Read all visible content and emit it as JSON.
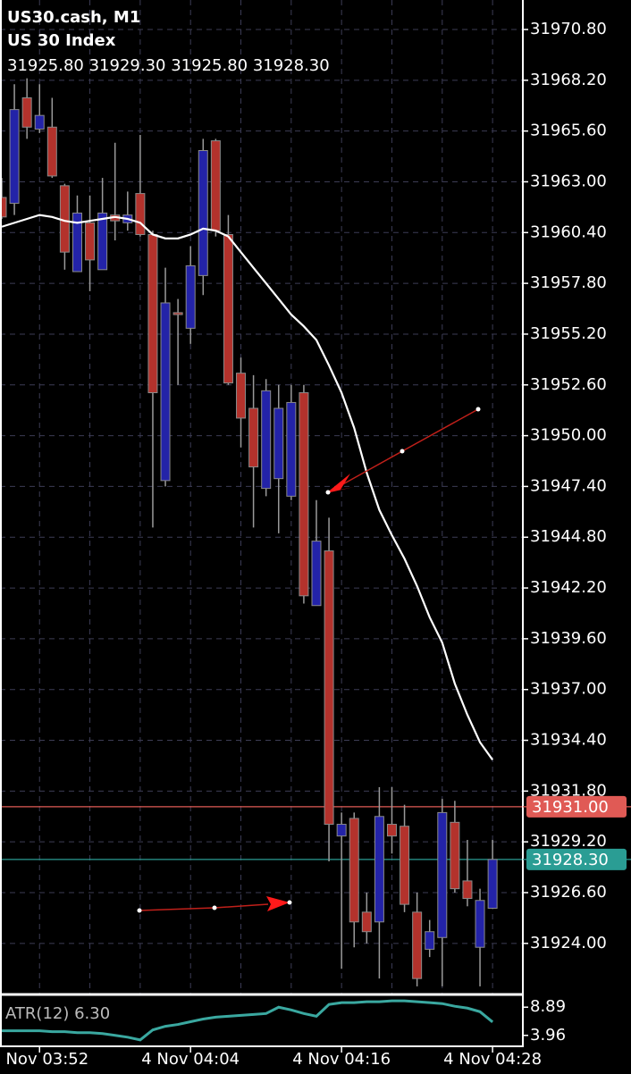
{
  "chart_data": [
    {
      "type": "candlestick",
      "title": "US30.cash, M1",
      "subtitle": "US 30 Index",
      "ohlc_text": "31925.80 31929.30 31925.80 31928.30",
      "categories": [
        null,
        null,
        null,
        "4 Nov 03:52",
        null,
        null,
        null,
        null,
        null,
        null,
        null,
        null,
        null,
        null,
        null,
        "4 Nov 04:04",
        null,
        null,
        null,
        null,
        null,
        null,
        null,
        null,
        null,
        null,
        null,
        "4 Nov 04:16",
        null,
        null,
        null,
        null,
        null,
        null,
        null,
        null,
        null,
        null,
        null,
        "4 Nov 04:28"
      ],
      "open": [
        31962.2,
        31961.9,
        31967.3,
        31965.7,
        31965.8,
        31962.8,
        31958.4,
        31960.9,
        31958.5,
        31961.3,
        31960.9,
        31962.4,
        31960.3,
        31947.7,
        31956.3,
        31955.5,
        31958.2,
        31965.1,
        31960.3,
        31953.2,
        31951.4,
        31947.3,
        31947.8,
        31946.9,
        31952.2,
        31941.3,
        31944.1,
        31929.5,
        31930.4,
        31925.6,
        31925.1,
        31930.1,
        31930.0,
        31925.6,
        31923.7,
        31924.3,
        31930.2,
        31927.2,
        31923.8,
        31925.8
      ],
      "high": [
        31963.2,
        31968.0,
        31968.3,
        31968.0,
        31967.3,
        31962.9,
        31962.3,
        31962.3,
        31963.2,
        31965.0,
        31962.5,
        31965.4,
        31960.5,
        31958.6,
        31957.0,
        31959.7,
        31965.2,
        31965.2,
        31961.3,
        31954.0,
        31953.1,
        31952.9,
        31952.6,
        31952.6,
        31952.6,
        31946.7,
        31945.8,
        31930.7,
        31930.7,
        31926.6,
        31932.0,
        31932.0,
        31931.1,
        31926.6,
        31925.2,
        31931.4,
        31931.3,
        31929.3,
        31926.8,
        31929.3
      ],
      "low": [
        31961.1,
        31961.3,
        31965.2,
        31965.5,
        31963.2,
        31958.5,
        31958.4,
        31957.4,
        31958.5,
        31960.0,
        31960.5,
        31960.2,
        31945.3,
        31947.4,
        31952.6,
        31954.7,
        31957.2,
        31960.2,
        31952.6,
        31949.4,
        31945.3,
        31946.9,
        31945.0,
        31946.7,
        31941.4,
        31941.3,
        31928.2,
        31922.7,
        31923.8,
        31924.0,
        31922.2,
        31928.6,
        31925.6,
        31921.8,
        31923.3,
        31921.8,
        31926.6,
        31925.9,
        31921.8,
        31925.8
      ],
      "close": [
        31961.2,
        31966.7,
        31965.8,
        31966.4,
        31963.3,
        31959.4,
        31961.4,
        31959.0,
        31961.4,
        31961.0,
        31961.3,
        31960.3,
        31952.2,
        31956.8,
        31956.2,
        31958.7,
        31964.6,
        31960.5,
        31952.7,
        31950.9,
        31948.4,
        31952.3,
        31951.4,
        31951.7,
        31941.8,
        31944.6,
        31930.1,
        31930.1,
        31925.1,
        31924.6,
        31930.5,
        31929.5,
        31926.0,
        31922.2,
        31924.6,
        31930.7,
        31926.8,
        31926.3,
        31926.2,
        31928.3
      ],
      "up_color": "#2323a8",
      "down_color": "#b3322c",
      "ma": {
        "color": "#ffffff",
        "values": [
          31960.7,
          31960.9,
          31961.1,
          31961.3,
          31961.2,
          31961.0,
          31960.9,
          31961.0,
          31961.1,
          31961.2,
          31961.1,
          31960.9,
          31960.3,
          31960.1,
          31960.1,
          31960.3,
          31960.6,
          31960.5,
          31960.2,
          31959.4,
          31958.6,
          31957.8,
          31957.0,
          31956.2,
          31955.6,
          31954.9,
          31953.6,
          31952.2,
          31950.4,
          31948.1,
          31946.2,
          31944.9,
          31943.7,
          31942.3,
          31940.7,
          31939.4,
          31937.3,
          31935.7,
          31934.3,
          31933.4
        ]
      },
      "ylim": [
        31921.43,
        31972.31
      ],
      "yticks": [
        {
          "value": 31970.8,
          "label": "31970.80"
        },
        {
          "value": 31968.2,
          "label": "31968.20"
        },
        {
          "value": 31965.6,
          "label": "31965.60"
        },
        {
          "value": 31963.0,
          "label": "31963.00"
        },
        {
          "value": 31960.4,
          "label": "31960.40"
        },
        {
          "value": 31957.8,
          "label": "31957.80"
        },
        {
          "value": 31955.2,
          "label": "31955.20"
        },
        {
          "value": 31952.6,
          "label": "31952.60"
        },
        {
          "value": 31950.0,
          "label": "31950.00"
        },
        {
          "value": 31947.4,
          "label": "31947.40"
        },
        {
          "value": 31944.8,
          "label": "31944.80"
        },
        {
          "value": 31942.2,
          "label": "31942.20"
        },
        {
          "value": 31939.6,
          "label": "31939.60"
        },
        {
          "value": 31937.0,
          "label": "31937.00"
        },
        {
          "value": 31934.4,
          "label": "31934.40"
        },
        {
          "value": 31931.8,
          "label": "31931.80"
        },
        {
          "value": 31929.2,
          "label": "31929.20"
        },
        {
          "value": 31926.6,
          "label": "31926.60"
        },
        {
          "value": 31924.0,
          "label": "31924.00"
        }
      ],
      "grid": true,
      "price_lines": [
        {
          "value": 31931.0,
          "label": "31931.00",
          "color": "#e05a55"
        },
        {
          "value": 31928.3,
          "label": "31928.30",
          "color": "#2a9d94"
        }
      ]
    },
    {
      "type": "line",
      "title": "ATR(12) 6.30",
      "color": "#3aa8a0",
      "values": [
        4.76,
        4.76,
        4.76,
        4.76,
        4.6,
        4.6,
        4.44,
        4.44,
        4.28,
        3.96,
        3.64,
        3.17,
        4.92,
        5.55,
        5.87,
        6.35,
        6.82,
        7.14,
        7.3,
        7.46,
        7.62,
        7.78,
        8.89,
        8.41,
        7.78,
        7.3,
        9.37,
        9.68,
        9.68,
        9.84,
        9.84,
        10.0,
        10.0,
        9.84,
        9.68,
        9.52,
        9.05,
        8.73,
        8.1,
        6.3
      ],
      "ylim": [
        2.05,
        10.8
      ],
      "yticks": [
        8.89,
        3.96
      ]
    }
  ]
}
